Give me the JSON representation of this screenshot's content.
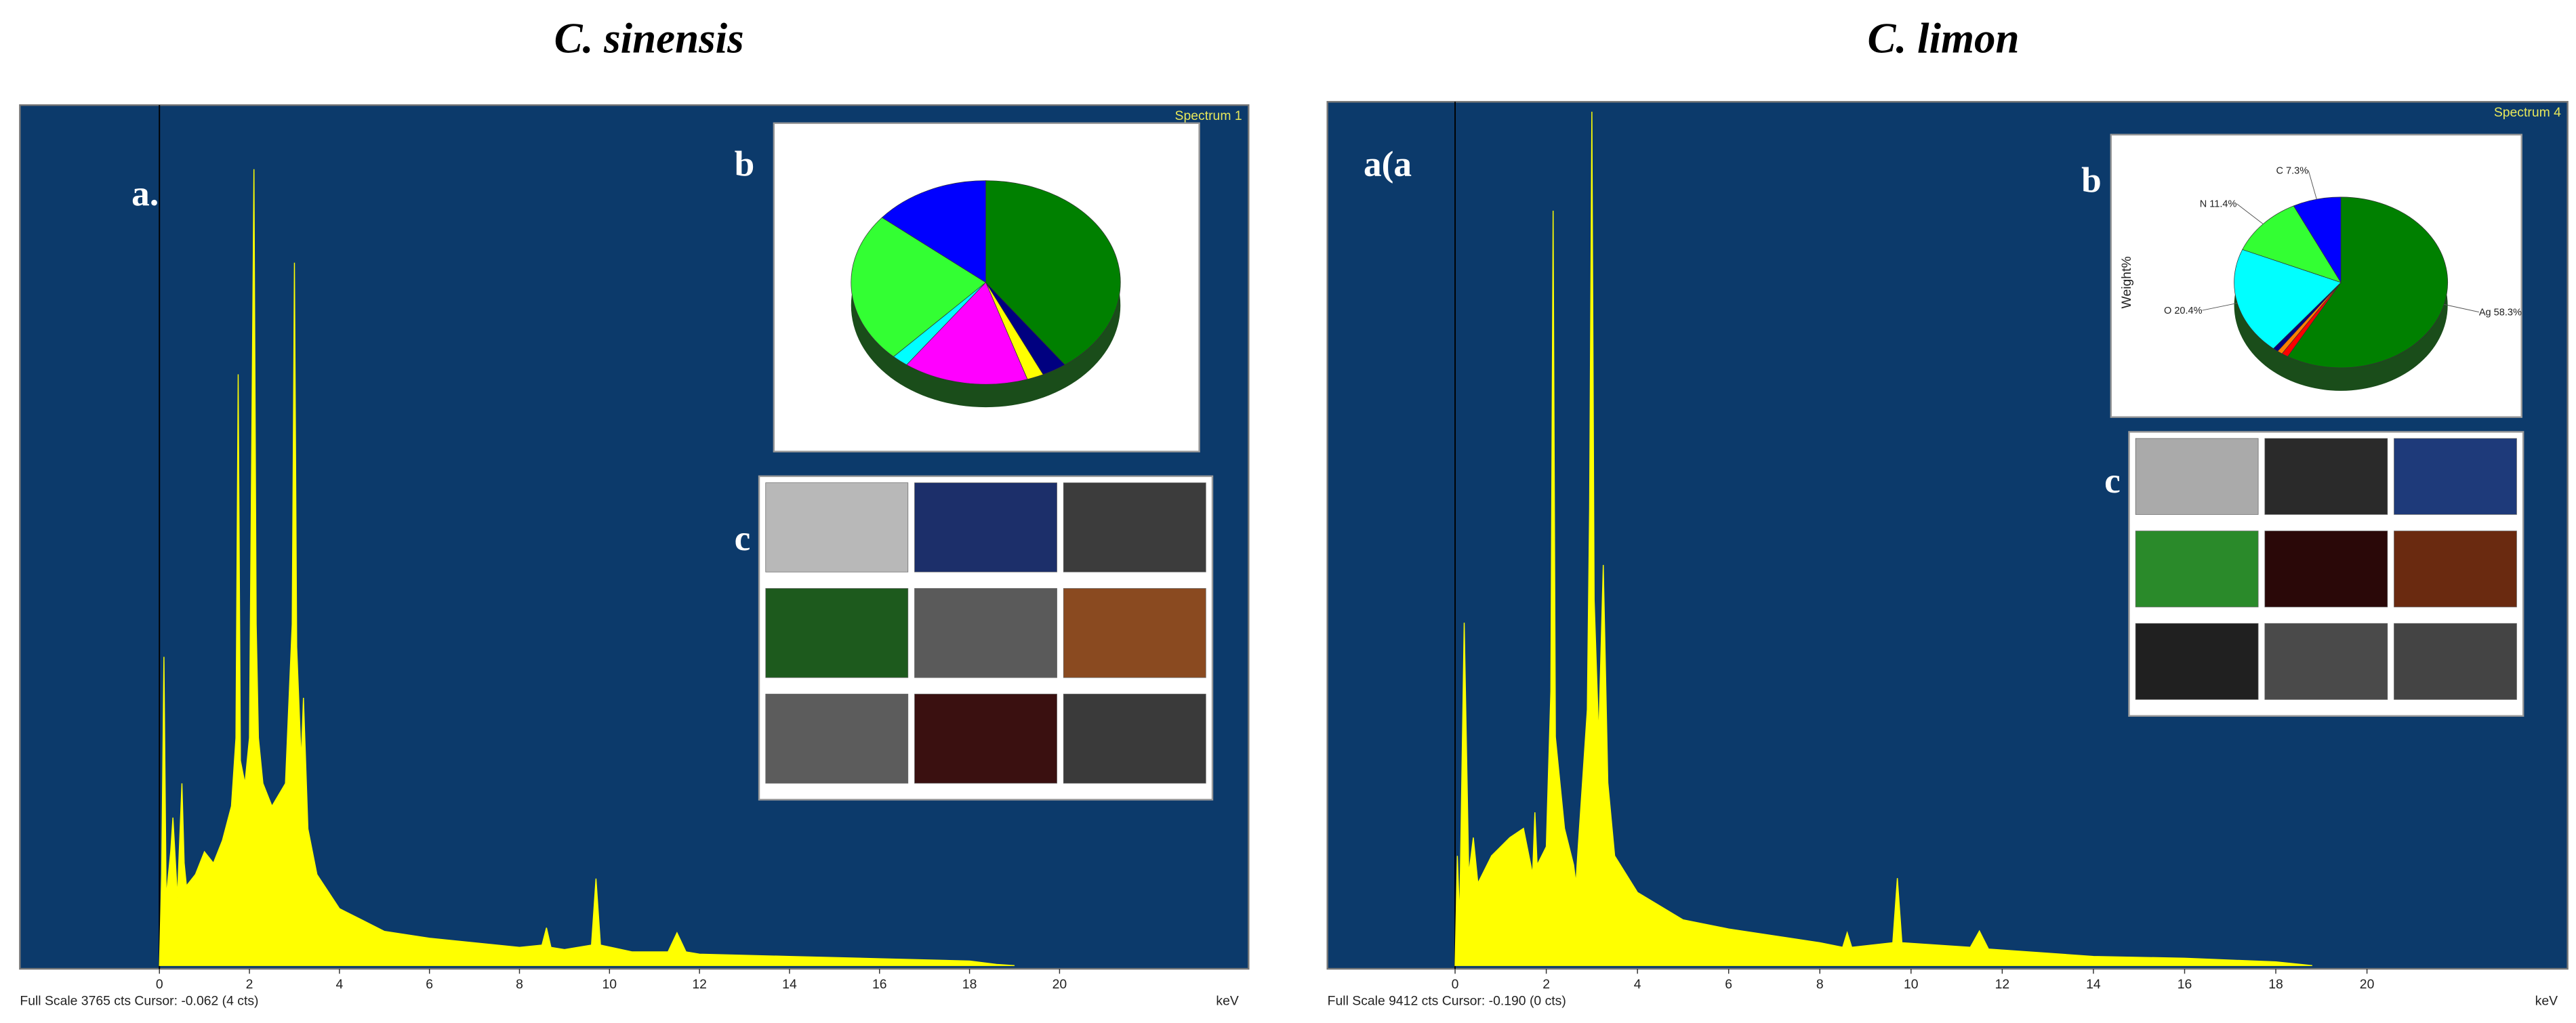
{
  "chart_data": [
    {
      "type": "line",
      "title": "C. sinensis",
      "panel_label": "a.",
      "spectrum_label": "Spectrum 1",
      "status": "Full Scale 3765 cts Cursor: -0.062  (4 cts)",
      "x_label": "keV",
      "xlim": [
        -3.1,
        24.2
      ],
      "xticks": [
        0,
        2,
        4,
        6,
        8,
        10,
        12,
        14,
        16,
        18,
        20
      ],
      "ylim": [
        0,
        3765
      ],
      "x": [
        0,
        0.05,
        0.1,
        0.15,
        0.25,
        0.3,
        0.4,
        0.5,
        0.55,
        0.6,
        0.8,
        1.0,
        1.2,
        1.4,
        1.6,
        1.7,
        1.75,
        1.8,
        1.9,
        2.0,
        2.1,
        2.15,
        2.2,
        2.3,
        2.5,
        2.8,
        2.95,
        3.0,
        3.05,
        3.15,
        3.2,
        3.3,
        3.5,
        4.0,
        4.5,
        5,
        6,
        7,
        8,
        8.5,
        8.6,
        8.7,
        9,
        9.6,
        9.7,
        9.8,
        10.5,
        11.3,
        11.5,
        11.7,
        12,
        14,
        16,
        18,
        18.6,
        19
      ],
      "series": [
        {
          "color": "#ffff00",
          "values": [
            0,
            400,
            1356,
            300,
            500,
            650,
            300,
            800,
            450,
            350,
            400,
            500,
            450,
            550,
            700,
            1000,
            2597,
            900,
            800,
            1000,
            3498,
            1500,
            1000,
            800,
            700,
            800,
            1500,
            3087,
            1400,
            900,
            1176,
            600,
            400,
            250,
            200,
            150,
            120,
            100,
            80,
            90,
            166,
            80,
            70,
            90,
            382,
            90,
            60,
            60,
            144,
            60,
            50,
            40,
            30,
            20,
            5,
            0
          ]
        }
      ],
      "pie": {
        "type": "pie",
        "label": "b",
        "categories": [
          null,
          null,
          null,
          null,
          null,
          null,
          null
        ],
        "values": [
          40,
          3,
          2,
          15,
          2,
          24,
          14
        ],
        "colors": [
          "#008000",
          "#000080",
          "#ffff00",
          "#ff00ff",
          "#00ffff",
          "#33ff33",
          "#0000ff"
        ]
      },
      "maps": {
        "label": "c"
      }
    },
    {
      "type": "line",
      "title": "C. limon",
      "panel_label": "a(a",
      "spectrum_label": "Spectrum 4",
      "status": "Full Scale 9412 cts Cursor: -0.190  (0 cts)",
      "x_label": "keV",
      "xlim": [
        -2.8,
        24.4
      ],
      "xticks": [
        0,
        2,
        4,
        6,
        8,
        10,
        12,
        14,
        16,
        18,
        20
      ],
      "ylim": [
        0,
        9412
      ],
      "x": [
        0,
        0.05,
        0.1,
        0.2,
        0.3,
        0.4,
        0.5,
        0.6,
        0.8,
        1.0,
        1.2,
        1.5,
        1.7,
        1.75,
        1.8,
        2.0,
        2.1,
        2.15,
        2.2,
        2.4,
        2.6,
        2.65,
        2.7,
        2.9,
        2.95,
        3.0,
        3.05,
        3.15,
        3.25,
        3.35,
        3.5,
        4,
        5,
        6,
        8,
        8.5,
        8.6,
        8.7,
        9.6,
        9.7,
        9.8,
        11.3,
        11.5,
        11.7,
        14,
        16,
        18,
        18.8
      ],
      "series": [
        {
          "color": "#ffff00",
          "values": [
            0,
            1200,
            500,
            3750,
            1000,
            1400,
            900,
            1000,
            1200,
            1300,
            1400,
            1500,
            1000,
            1676,
            1100,
            1300,
            3000,
            8257,
            2500,
            1500,
            1100,
            900,
            1300,
            2800,
            5000,
            9340,
            4000,
            2500,
            4382,
            2000,
            1200,
            800,
            500,
            400,
            250,
            200,
            360,
            200,
            250,
            956,
            250,
            200,
            378,
            180,
            100,
            80,
            40,
            0
          ]
        }
      ],
      "pie": {
        "type": "pie",
        "label": "b",
        "axis_label": "Weight%",
        "categories": [
          "Ag 58.3%",
          null,
          null,
          null,
          "O 20.4%",
          "N 11.4%",
          "C 7.3%"
        ],
        "values": [
          58.3,
          1.0,
          0.8,
          0.8,
          20.4,
          11.4,
          7.3
        ],
        "colors": [
          "#008000",
          "#ff0000",
          "#ff8000",
          "#000080",
          "#00ffff",
          "#33ff33",
          "#0000ff"
        ]
      },
      "maps": {
        "label": "c"
      }
    }
  ]
}
